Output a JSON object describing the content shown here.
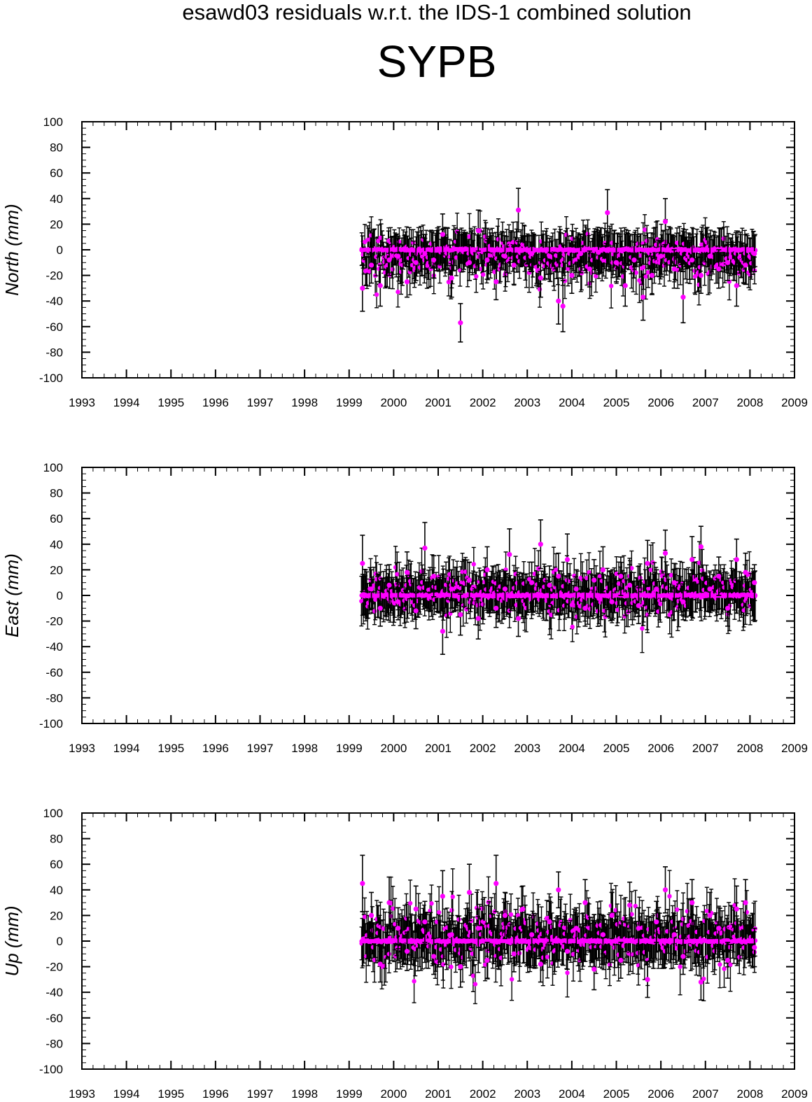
{
  "figure": {
    "title": "esawd03 residuals w.r.t. the IDS-1 combined solution",
    "station": "SYPB"
  },
  "colors": {
    "point": "#ff00ff",
    "errorbar": "#000000",
    "axis": "#000000",
    "background": "#ffffff"
  },
  "chart_data": [
    {
      "type": "scatter",
      "panel": "north",
      "ylabel": "North (mm)",
      "xlim": [
        1993,
        2009
      ],
      "ylim": [
        -100,
        100
      ],
      "x_ticks": [
        "1993",
        "1994",
        "1995",
        "1996",
        "1997",
        "1998",
        "1999",
        "2000",
        "2001",
        "2002",
        "2003",
        "2004",
        "2005",
        "2006",
        "2007",
        "2008",
        "2009"
      ],
      "y_ticks": [
        "100",
        "80",
        "60",
        "40",
        "20",
        "0",
        "-20",
        "-40",
        "-60",
        "-80",
        "-100"
      ],
      "grid": false,
      "error_bars": true,
      "series": [
        {
          "x": [
            1999.3,
            1999.5,
            1999.7,
            1999.9,
            2000.1,
            2000.3,
            2000.5,
            2000.7,
            2000.9,
            2001.1,
            2001.3,
            2001.5,
            2001.7,
            2001.9,
            2002.1,
            2002.3,
            2002.5,
            2002.7,
            2002.8,
            2003.1,
            2003.3,
            2003.5,
            2003.7,
            2003.8,
            2004.0,
            2004.2,
            2004.4,
            2004.6,
            2004.8,
            2005.0,
            2005.2,
            2005.4,
            2005.6,
            2005.8,
            2006.0,
            2006.1,
            2006.3,
            2006.5,
            2006.7,
            2006.9,
            2007.1,
            2007.3,
            2007.5,
            2007.7,
            2007.9,
            2008.1
          ],
          "y": [
            -30,
            -12,
            -28,
            -8,
            -5,
            -25,
            -10,
            -3,
            -8,
            12,
            -22,
            -57,
            -10,
            15,
            -8,
            -25,
            -5,
            -12,
            31,
            -3,
            -22,
            -5,
            -40,
            -44,
            -20,
            -3,
            -15,
            -2,
            29,
            -10,
            -28,
            -8,
            -37,
            -20,
            -5,
            22,
            -15,
            -37,
            -8,
            -20,
            -5,
            -15,
            -10,
            -28,
            -12,
            -3
          ],
          "err": [
            18,
            14,
            16,
            12,
            14,
            12,
            14,
            12,
            14,
            16,
            15,
            15,
            14,
            16,
            15,
            14,
            16,
            15,
            17,
            14,
            15,
            14,
            18,
            20,
            14,
            15,
            14,
            16,
            18,
            15,
            16,
            14,
            18,
            15,
            14,
            18,
            15,
            20,
            15,
            14,
            15,
            15,
            14,
            16,
            15,
            14
          ]
        }
      ]
    },
    {
      "type": "scatter",
      "panel": "east",
      "ylabel": "East (mm)",
      "xlim": [
        1993,
        2009
      ],
      "ylim": [
        -100,
        100
      ],
      "x_ticks": [
        "1993",
        "1994",
        "1995",
        "1996",
        "1997",
        "1998",
        "1999",
        "2000",
        "2001",
        "2002",
        "2003",
        "2004",
        "2005",
        "2006",
        "2007",
        "2008",
        "2009"
      ],
      "y_ticks": [
        "100",
        "80",
        "60",
        "40",
        "20",
        "0",
        "-20",
        "-40",
        "-60",
        "-80",
        "-100"
      ],
      "grid": false,
      "error_bars": true,
      "series": [
        {
          "x": [
            1999.3,
            1999.5,
            1999.7,
            1999.9,
            2000.1,
            2000.3,
            2000.5,
            2000.7,
            2000.9,
            2001.1,
            2001.3,
            2001.5,
            2001.7,
            2001.9,
            2002.1,
            2002.3,
            2002.5,
            2002.6,
            2002.8,
            2003.1,
            2003.3,
            2003.5,
            2003.7,
            2003.9,
            2004.1,
            2004.3,
            2004.5,
            2004.7,
            2004.9,
            2005.1,
            2005.3,
            2005.5,
            2005.7,
            2005.9,
            2006.1,
            2006.3,
            2006.5,
            2006.7,
            2006.9,
            2007.1,
            2007.3,
            2007.5,
            2007.7,
            2007.9,
            2008.1
          ],
          "y": [
            25,
            5,
            -10,
            8,
            -5,
            18,
            -12,
            37,
            15,
            -28,
            5,
            -15,
            12,
            -18,
            20,
            -10,
            5,
            32,
            -18,
            10,
            40,
            8,
            15,
            28,
            5,
            -10,
            12,
            20,
            -5,
            15,
            8,
            -8,
            25,
            5,
            33,
            10,
            -5,
            28,
            38,
            5,
            15,
            -10,
            28,
            18,
            10
          ],
          "err": [
            22,
            15,
            14,
            16,
            14,
            16,
            14,
            20,
            16,
            18,
            15,
            16,
            14,
            16,
            18,
            15,
            14,
            20,
            14,
            16,
            19,
            15,
            18,
            20,
            15,
            14,
            16,
            18,
            14,
            15,
            16,
            14,
            18,
            15,
            18,
            15,
            14,
            18,
            16,
            14,
            15,
            14,
            16,
            15,
            14
          ]
        }
      ]
    },
    {
      "type": "scatter",
      "panel": "up",
      "ylabel": "Up (mm)",
      "xlim": [
        1993,
        2009
      ],
      "ylim": [
        -100,
        100
      ],
      "x_ticks": [
        "1993",
        "1994",
        "1995",
        "1996",
        "1997",
        "1998",
        "1999",
        "2000",
        "2001",
        "2002",
        "2003",
        "2004",
        "2005",
        "2006",
        "2007",
        "2008",
        "2009"
      ],
      "y_ticks": [
        "100",
        "80",
        "60",
        "40",
        "20",
        "0",
        "-20",
        "-40",
        "-60",
        "-80",
        "-100"
      ],
      "grid": false,
      "error_bars": true,
      "series": [
        {
          "x": [
            1999.3,
            1999.5,
            1999.7,
            1999.9,
            2000.1,
            2000.3,
            2000.5,
            2000.7,
            2000.9,
            2001.1,
            2001.3,
            2001.5,
            2001.7,
            2001.9,
            2002.1,
            2002.3,
            2002.5,
            2002.7,
            2002.9,
            2003.1,
            2003.3,
            2003.5,
            2003.7,
            2003.9,
            2004.1,
            2004.3,
            2004.5,
            2004.7,
            2004.9,
            2005.1,
            2005.3,
            2005.5,
            2005.7,
            2005.9,
            2006.1,
            2006.3,
            2006.5,
            2006.7,
            2006.9,
            2007.1,
            2007.3,
            2007.5,
            2007.7,
            2007.9,
            2008.1
          ],
          "y": [
            45,
            20,
            -18,
            30,
            10,
            -8,
            25,
            15,
            -12,
            35,
            5,
            -20,
            38,
            10,
            -15,
            45,
            20,
            -10,
            25,
            5,
            -18,
            15,
            40,
            -8,
            10,
            30,
            -22,
            5,
            20,
            -15,
            28,
            10,
            -30,
            15,
            40,
            5,
            -12,
            30,
            -32,
            20,
            10,
            -15,
            25,
            30,
            -5
          ],
          "err": [
            22,
            18,
            14,
            20,
            16,
            15,
            18,
            16,
            14,
            20,
            15,
            16,
            22,
            15,
            14,
            22,
            18,
            14,
            18,
            15,
            14,
            16,
            14,
            14,
            16,
            18,
            16,
            15,
            18,
            14,
            18,
            16,
            14,
            16,
            18,
            15,
            14,
            18,
            14,
            18,
            16,
            14,
            18,
            18,
            15
          ]
        }
      ]
    }
  ]
}
